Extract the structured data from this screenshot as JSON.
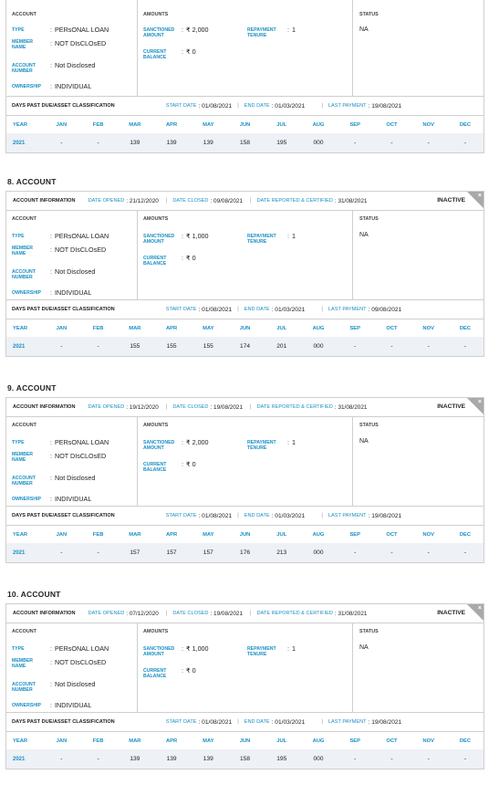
{
  "labels": {
    "account": "ACCOUNT",
    "amounts": "AMOUNTS",
    "status": "STATUS",
    "type": "TYPE",
    "member_name_1": "MEMBER",
    "member_name_2": "NAME",
    "account_number_1": "ACCOUNT",
    "account_number_2": "NUMBER",
    "ownership": "OWNERSHIP",
    "sanctioned_1": "SANCTIONED",
    "sanctioned_2": "AMOUNT",
    "current_1": "CURRENT",
    "current_2": "BALANCE",
    "repayment_1": "REPAYMENT",
    "repayment_2": "TENURE",
    "account_information": "ACCOUNT INFORMATION",
    "date_opened": "DATE OPENED",
    "date_closed": "DATE CLOSED",
    "date_reported": "DATE REPORTED & CERTIFIED",
    "dpd_title": "DAYS PAST DUE/ASSET CLASSIFICATION",
    "start_date": "START DATE",
    "end_date": "END DATE",
    "last_payment": "LAST PAYMENT",
    "inactive": "INACTIVE",
    "close_x": "×"
  },
  "months": [
    "YEAR",
    "JAN",
    "FEB",
    "MAR",
    "APR",
    "MAY",
    "JUN",
    "JUL",
    "AUG",
    "SEP",
    "OCT",
    "NOV",
    "DEC"
  ],
  "accounts": [
    {
      "title": "",
      "type": "PERsONAL LOAN",
      "member_name": "NOT DIsCLOsED",
      "account_number": "Not Disclosed",
      "ownership": "INDIVIDUAL",
      "sanctioned": "₹ 2,000",
      "current_balance": "₹ 0",
      "tenure": "1",
      "status": "NA",
      "date_opened": "",
      "date_closed": "",
      "date_reported": "",
      "start_date": "01/08/2021",
      "end_date": "01/03/2021",
      "last_payment": "19/08/2021",
      "row": [
        "2021",
        "-",
        "-",
        "139",
        "139",
        "139",
        "158",
        "195",
        "000",
        "-",
        "-",
        "-",
        "-"
      ]
    },
    {
      "title": "8. ACCOUNT",
      "type": "PERsONAL LOAN",
      "member_name": "NOT DIsCLOsED",
      "account_number": "Not Disclosed",
      "ownership": "INDIVIDUAL",
      "sanctioned": "₹ 1,000",
      "current_balance": "₹ 0",
      "tenure": "1",
      "status": "NA",
      "date_opened": "21/12/2020",
      "date_closed": "09/08/2021",
      "date_reported": "31/08/2021",
      "start_date": "01/08/2021",
      "end_date": "01/03/2021",
      "last_payment": "09/08/2021",
      "row": [
        "2021",
        "-",
        "-",
        "155",
        "155",
        "155",
        "174",
        "201",
        "000",
        "-",
        "-",
        "-",
        "-"
      ]
    },
    {
      "title": "9. ACCOUNT",
      "type": "PERsONAL LOAN",
      "member_name": "NOT DIsCLOsED",
      "account_number": "Not Disclosed",
      "ownership": "INDIVIDUAL",
      "sanctioned": "₹ 2,000",
      "current_balance": "₹ 0",
      "tenure": "1",
      "status": "NA",
      "date_opened": "19/12/2020",
      "date_closed": "19/08/2021",
      "date_reported": "31/08/2021",
      "start_date": "01/08/2021",
      "end_date": "01/03/2021",
      "last_payment": "19/08/2021",
      "row": [
        "2021",
        "-",
        "-",
        "157",
        "157",
        "157",
        "176",
        "213",
        "000",
        "-",
        "-",
        "-",
        "-"
      ]
    },
    {
      "title": "10. ACCOUNT",
      "type": "PERsONAL LOAN",
      "member_name": "NOT DIsCLOsED",
      "account_number": "Not Disclosed",
      "ownership": "INDIVIDUAL",
      "sanctioned": "₹ 1,000",
      "current_balance": "₹ 0",
      "tenure": "1",
      "status": "NA",
      "date_opened": "07/12/2020",
      "date_closed": "19/08/2021",
      "date_reported": "31/08/2021",
      "start_date": "01/08/2021",
      "end_date": "01/03/2021",
      "last_payment": "19/08/2021",
      "row": [
        "2021",
        "-",
        "-",
        "139",
        "139",
        "139",
        "158",
        "195",
        "000",
        "-",
        "-",
        "-",
        "-"
      ]
    }
  ]
}
